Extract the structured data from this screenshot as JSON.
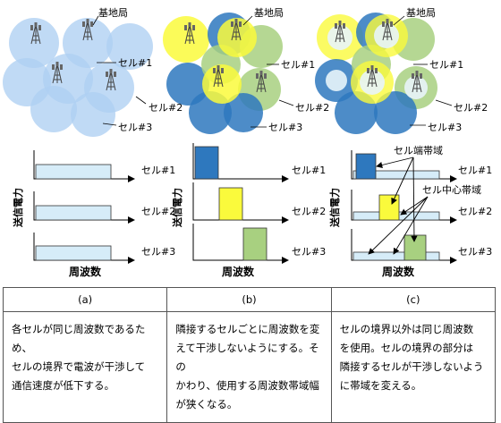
{
  "labels": {
    "base_station": "基地局",
    "cell1": "セル#1",
    "cell2": "セル#2",
    "cell3": "セル#3",
    "edge_band": "セル端帯域",
    "center_band": "セル中心帯域",
    "ylabel": "送信電力",
    "xlabel": "周波数"
  },
  "colors": {
    "light_blue": "#aed0f2",
    "dark_blue": "#2e78be",
    "yellow": "#fafa3c",
    "green": "#a8d080",
    "bar_light_blue": "#d6ecf8"
  },
  "table": {
    "headers": [
      "(a)",
      "(b)",
      "(c)"
    ],
    "lines": [
      [
        "各セルが同じ周波数であるため、",
        "セルの境界で電波が干渉して",
        "通信速度が低下する。"
      ],
      [
        "隣接するセルごとに周波数を変",
        "えて干渉しないようにする。その",
        "かわり、使用する周波数帯域幅",
        "が狭くなる。"
      ],
      [
        "セルの境界以外は同じ周波数",
        "を使用。セルの境界の部分は",
        "隣接するセルが干渉しないよう",
        "に帯域を変える。"
      ]
    ]
  }
}
